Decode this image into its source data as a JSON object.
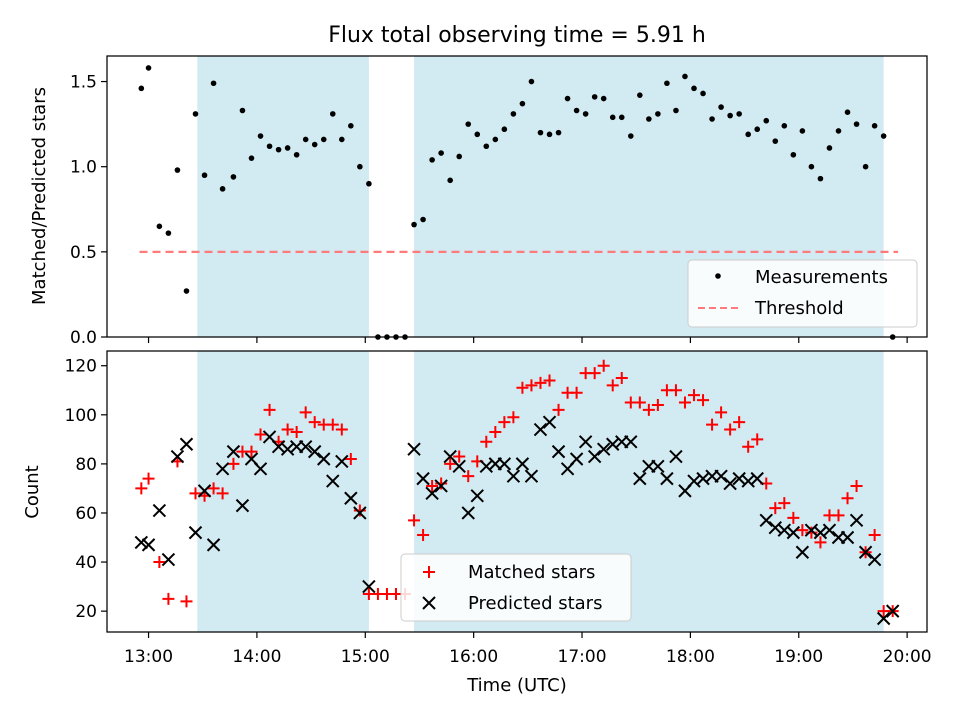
{
  "figure_title": "Flux total observing time = 5.91 h",
  "xlabel": "Time (UTC)",
  "x_ticks": [
    "13:00",
    "14:00",
    "15:00",
    "16:00",
    "17:00",
    "18:00",
    "19:00",
    "20:00"
  ],
  "colors": {
    "shade": "#add8e6",
    "threshold": "#ff7a7a",
    "matched": "#ff0000",
    "predicted": "#000000",
    "measure": "#000000"
  },
  "chart_data": [
    {
      "type": "scatter",
      "panel": "top",
      "ylabel": "Matched/Predicted stars",
      "xlim": [
        "12:37",
        "20:11"
      ],
      "ylim": [
        0,
        1.65
      ],
      "y_ticks": [
        "0.0",
        "0.5",
        "1.0",
        "1.5"
      ],
      "shaded_intervals": [
        [
          "13:27",
          "15:02"
        ],
        [
          "15:27",
          "19:47"
        ]
      ],
      "threshold": {
        "name": "Threshold",
        "value": 0.5,
        "x_range": [
          "12:55",
          "19:55"
        ]
      },
      "legend": [
        "Measurements",
        "Threshold"
      ],
      "legend_position": "lower-right",
      "series": [
        {
          "name": "Measurements",
          "x": [
            "12:56",
            "13:00",
            "13:06",
            "13:11",
            "13:16",
            "13:21",
            "13:26",
            "13:31",
            "13:36",
            "13:41",
            "13:47",
            "13:52",
            "13:57",
            "14:02",
            "14:07",
            "14:12",
            "14:17",
            "14:22",
            "14:27",
            "14:32",
            "14:37",
            "14:42",
            "14:47",
            "14:52",
            "14:57",
            "15:02",
            "15:07",
            "15:12",
            "15:17",
            "15:22",
            "15:27",
            "15:32",
            "15:37",
            "15:42",
            "15:47",
            "15:52",
            "15:57",
            "16:02",
            "16:07",
            "16:12",
            "16:17",
            "16:22",
            "16:27",
            "16:32",
            "16:37",
            "16:42",
            "16:47",
            "16:52",
            "16:57",
            "17:02",
            "17:07",
            "17:12",
            "17:17",
            "17:22",
            "17:27",
            "17:32",
            "17:37",
            "17:42",
            "17:47",
            "17:52",
            "17:57",
            "18:02",
            "18:07",
            "18:12",
            "18:17",
            "18:22",
            "18:27",
            "18:32",
            "18:37",
            "18:42",
            "18:47",
            "18:52",
            "18:57",
            "19:02",
            "19:07",
            "19:12",
            "19:17",
            "19:22",
            "19:27",
            "19:32",
            "19:37",
            "19:42",
            "19:47",
            "19:52"
          ],
          "y": [
            1.46,
            1.58,
            0.65,
            0.61,
            0.98,
            0.27,
            1.31,
            0.95,
            1.49,
            0.87,
            0.94,
            1.33,
            1.05,
            1.18,
            1.12,
            1.1,
            1.11,
            1.07,
            1.16,
            1.13,
            1.16,
            1.31,
            1.16,
            1.24,
            1.0,
            0.9,
            0.0,
            0.0,
            0.0,
            0.0,
            0.66,
            0.69,
            1.04,
            1.08,
            0.92,
            1.06,
            1.25,
            1.19,
            1.12,
            1.16,
            1.22,
            1.31,
            1.37,
            1.5,
            1.2,
            1.19,
            1.2,
            1.4,
            1.33,
            1.31,
            1.41,
            1.4,
            1.29,
            1.29,
            1.18,
            1.42,
            1.28,
            1.31,
            1.49,
            1.33,
            1.53,
            1.46,
            1.43,
            1.28,
            1.35,
            1.3,
            1.31,
            1.19,
            1.22,
            1.27,
            1.15,
            1.24,
            1.07,
            1.21,
            1.0,
            0.93,
            1.11,
            1.21,
            1.32,
            1.25,
            1.0,
            1.24,
            1.18,
            0.0
          ]
        }
      ]
    },
    {
      "type": "scatter",
      "panel": "bottom",
      "ylabel": "Count",
      "xlim": [
        "12:37",
        "20:11"
      ],
      "ylim": [
        11.5,
        126
      ],
      "y_ticks": [
        "20",
        "40",
        "60",
        "80",
        "100",
        "120"
      ],
      "shaded_intervals": [
        [
          "13:27",
          "15:02"
        ],
        [
          "15:27",
          "19:47"
        ]
      ],
      "legend": [
        "Matched stars",
        "Predicted stars"
      ],
      "legend_position": "lower-center",
      "series": [
        {
          "name": "Matched stars",
          "marker": "plus",
          "x": [
            "12:56",
            "13:00",
            "13:06",
            "13:11",
            "13:16",
            "13:21",
            "13:26",
            "13:31",
            "13:36",
            "13:41",
            "13:47",
            "13:52",
            "13:57",
            "14:02",
            "14:07",
            "14:12",
            "14:17",
            "14:22",
            "14:27",
            "14:32",
            "14:37",
            "14:42",
            "14:47",
            "14:52",
            "14:57",
            "15:02",
            "15:07",
            "15:12",
            "15:17",
            "15:22",
            "15:27",
            "15:32",
            "15:37",
            "15:42",
            "15:47",
            "15:52",
            "15:57",
            "16:02",
            "16:07",
            "16:12",
            "16:17",
            "16:22",
            "16:27",
            "16:32",
            "16:37",
            "16:42",
            "16:47",
            "16:52",
            "16:57",
            "17:02",
            "17:07",
            "17:12",
            "17:17",
            "17:22",
            "17:27",
            "17:32",
            "17:37",
            "17:42",
            "17:47",
            "17:52",
            "17:57",
            "18:02",
            "18:07",
            "18:12",
            "18:17",
            "18:22",
            "18:27",
            "18:32",
            "18:37",
            "18:42",
            "18:47",
            "18:52",
            "18:57",
            "19:02",
            "19:07",
            "19:12",
            "19:17",
            "19:22",
            "19:27",
            "19:32",
            "19:37",
            "19:42",
            "19:47",
            "19:52"
          ],
          "y": [
            70,
            74,
            40,
            25,
            81,
            24,
            68,
            67,
            70,
            68,
            80,
            85,
            85,
            92,
            102,
            89,
            94,
            93,
            101,
            97,
            96,
            96,
            94,
            82,
            61,
            27,
            27,
            27,
            27,
            27,
            57,
            51,
            71,
            72,
            80,
            83,
            75,
            81,
            89,
            93,
            97,
            99,
            111,
            112,
            113,
            114,
            102,
            109,
            109,
            117,
            117,
            120,
            112,
            115,
            105,
            105,
            102,
            104,
            110,
            110,
            105,
            108,
            106,
            96,
            101,
            94,
            97,
            87,
            90,
            72,
            62,
            64,
            58,
            53,
            52,
            48,
            59,
            59,
            66,
            71,
            44,
            51,
            20,
            20
          ]
        },
        {
          "name": "Predicted stars",
          "marker": "x",
          "x": [
            "12:56",
            "13:00",
            "13:06",
            "13:11",
            "13:16",
            "13:21",
            "13:26",
            "13:31",
            "13:36",
            "13:41",
            "13:47",
            "13:52",
            "13:57",
            "14:02",
            "14:07",
            "14:12",
            "14:17",
            "14:22",
            "14:27",
            "14:32",
            "14:37",
            "14:42",
            "14:47",
            "14:52",
            "14:57",
            "15:02",
            "15:27",
            "15:32",
            "15:37",
            "15:42",
            "15:47",
            "15:52",
            "15:57",
            "16:02",
            "16:07",
            "16:12",
            "16:17",
            "16:22",
            "16:27",
            "16:32",
            "16:37",
            "16:42",
            "16:47",
            "16:52",
            "16:57",
            "17:02",
            "17:07",
            "17:12",
            "17:17",
            "17:22",
            "17:27",
            "17:32",
            "17:37",
            "17:42",
            "17:47",
            "17:52",
            "17:57",
            "18:02",
            "18:07",
            "18:12",
            "18:17",
            "18:22",
            "18:27",
            "18:32",
            "18:37",
            "18:42",
            "18:47",
            "18:52",
            "18:57",
            "19:02",
            "19:07",
            "19:12",
            "19:17",
            "19:22",
            "19:27",
            "19:32",
            "19:37",
            "19:42",
            "19:47",
            "19:52"
          ],
          "y": [
            48,
            47,
            61,
            41,
            83,
            88,
            52,
            69,
            47,
            78,
            85,
            63,
            82,
            78,
            91,
            87,
            86,
            87,
            87,
            85,
            82,
            73,
            81,
            66,
            60,
            30,
            86,
            74,
            68,
            71,
            83,
            79,
            60,
            67,
            79,
            80,
            80,
            75,
            80,
            75,
            94,
            97,
            85,
            78,
            82,
            89,
            83,
            86,
            88,
            89,
            89,
            74,
            79,
            79,
            74,
            83,
            69,
            73,
            74,
            75,
            75,
            72,
            74,
            73,
            74,
            57,
            54,
            53,
            52,
            44,
            53,
            52,
            53,
            50,
            50,
            57,
            44,
            41,
            17,
            20
          ]
        }
      ]
    }
  ]
}
